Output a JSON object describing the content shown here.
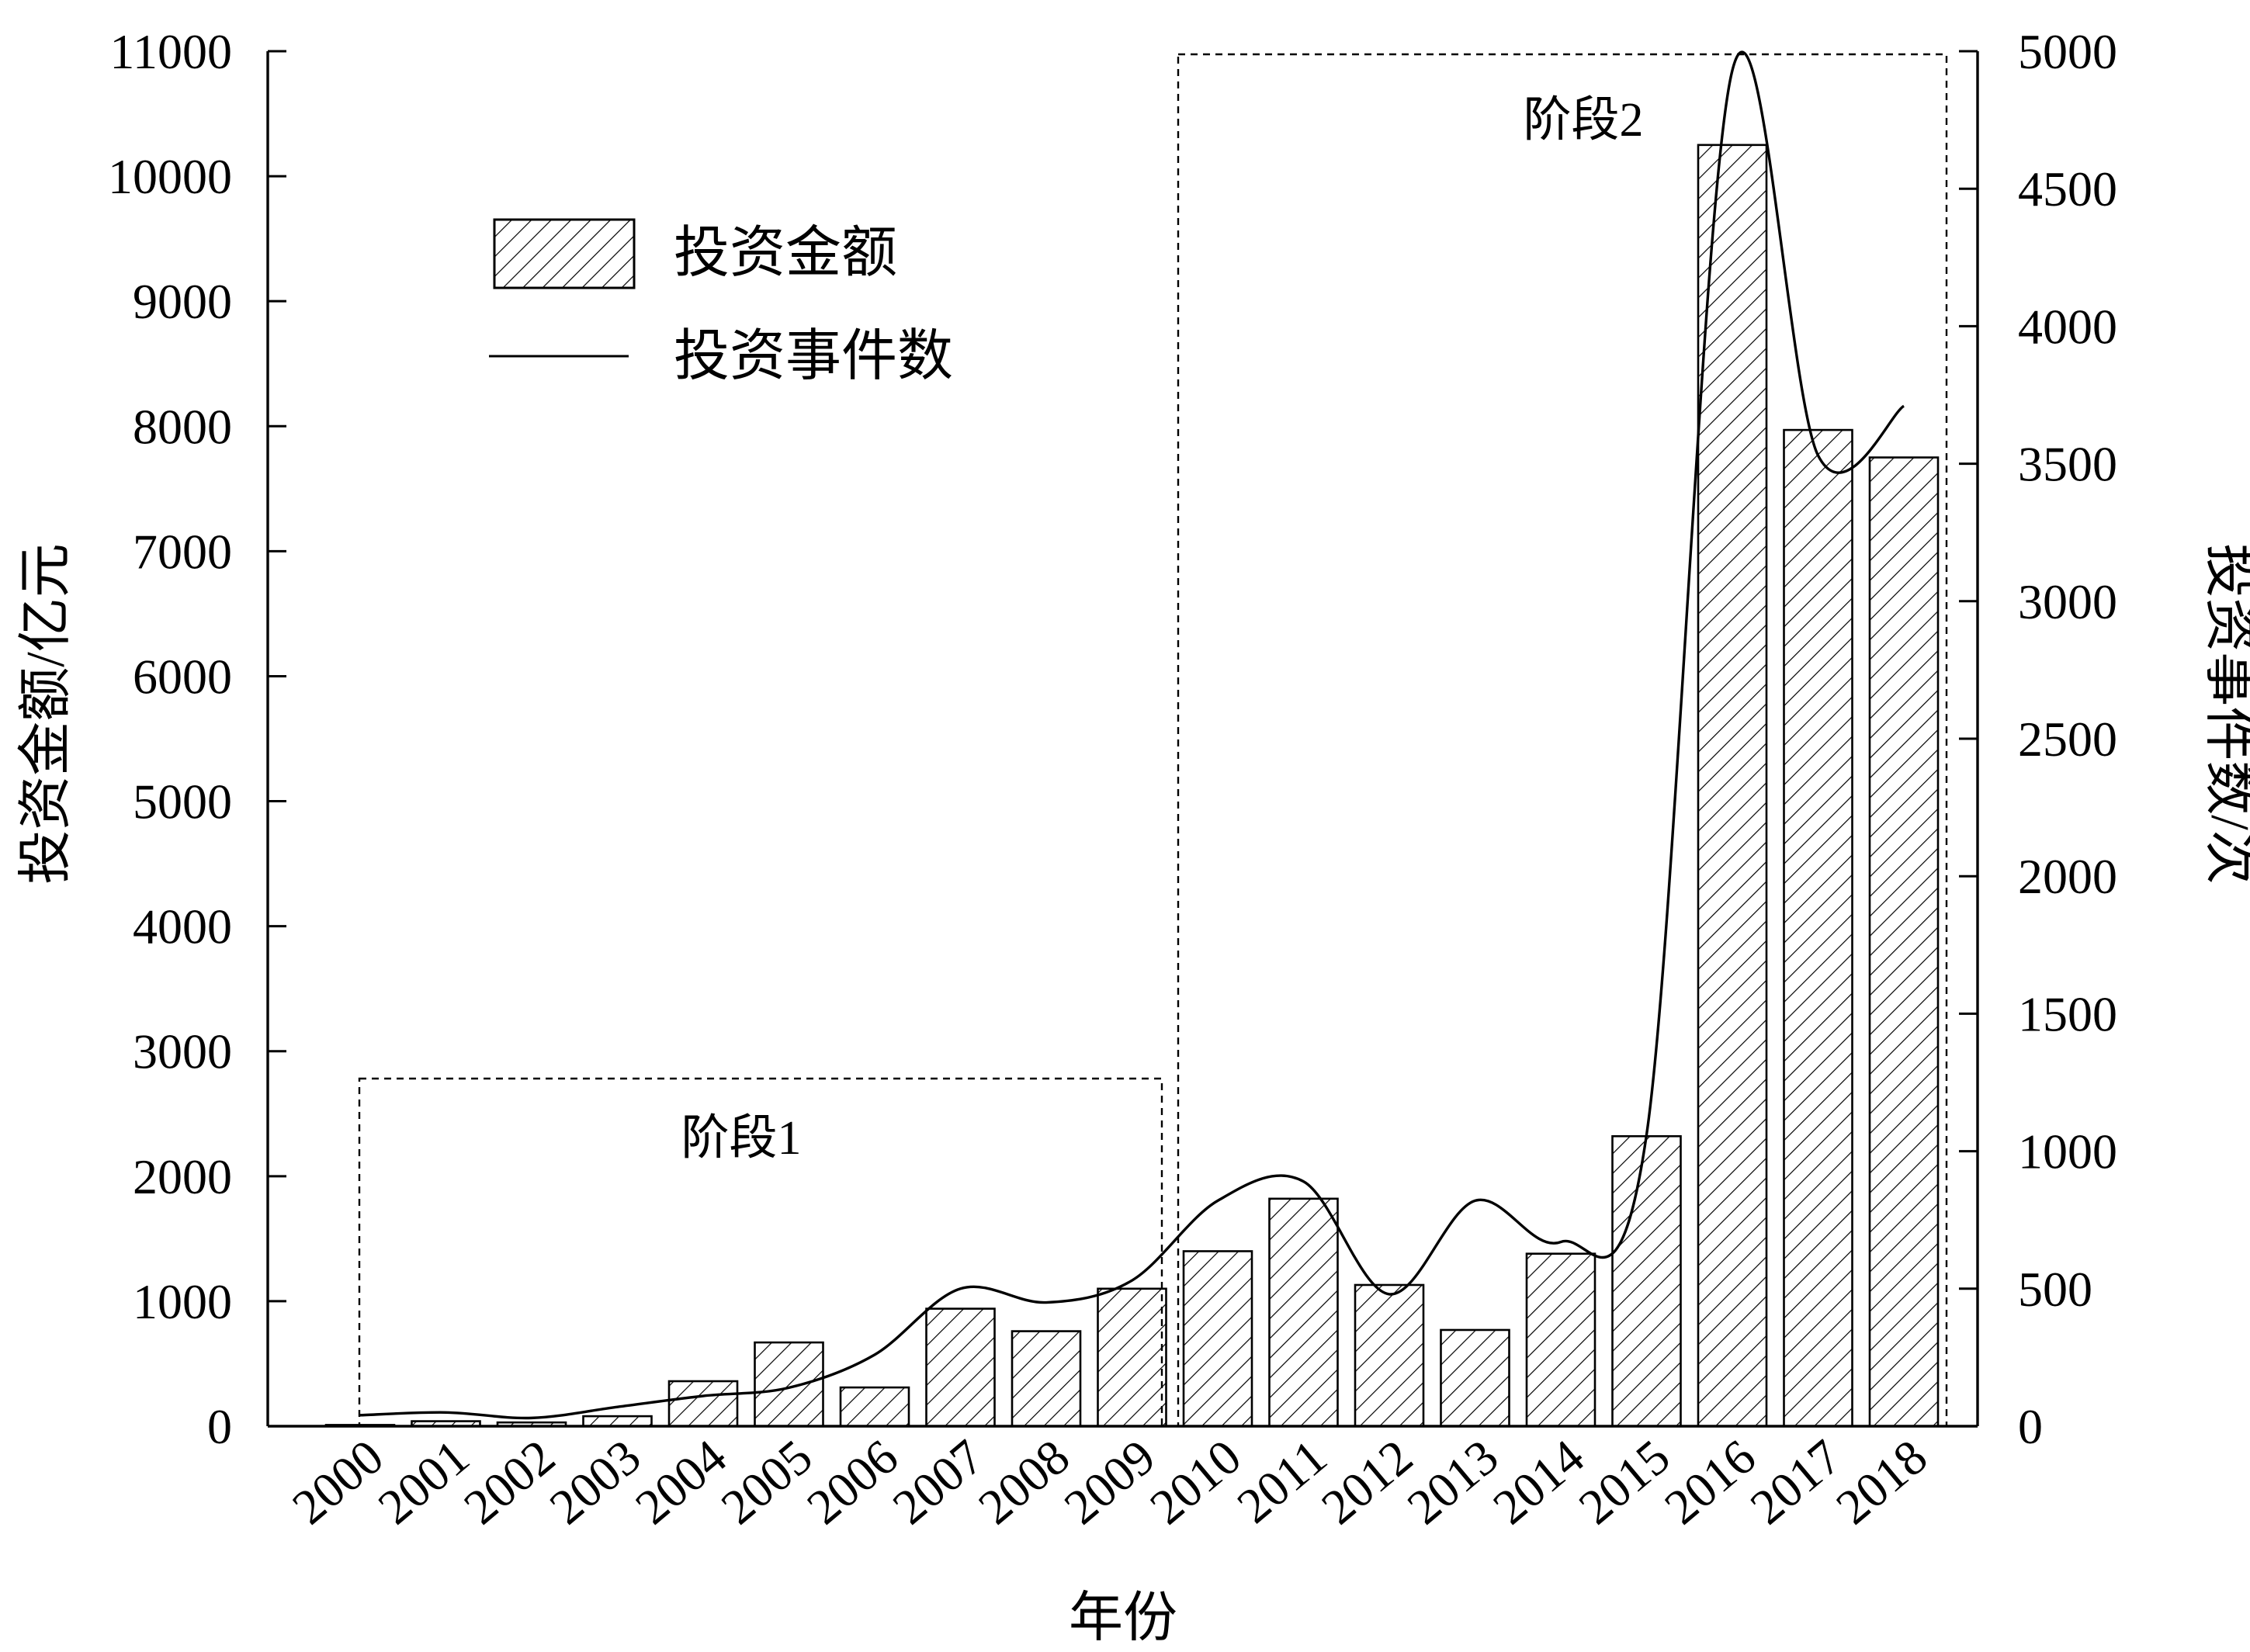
{
  "chart_data": {
    "type": "bar",
    "categories": [
      "2000",
      "2001",
      "2002",
      "2003",
      "2004",
      "2005",
      "2006",
      "2007",
      "2008",
      "2009",
      "2010",
      "2011",
      "2012",
      "2013",
      "2014",
      "2015",
      "2016",
      "2017",
      "2018"
    ],
    "series": [
      {
        "name": "投资金额",
        "type": "bar",
        "axis": "left",
        "pattern": "diagonal-hatch",
        "values": [
          10,
          40,
          30,
          80,
          360,
          670,
          310,
          940,
          760,
          1100,
          1400,
          1820,
          1130,
          770,
          1380,
          2320,
          10250,
          7970,
          7750
        ]
      },
      {
        "name": "投资事件数",
        "type": "line",
        "axis": "right",
        "smooth": true,
        "values": [
          40,
          50,
          30,
          70,
          110,
          140,
          260,
          500,
          450,
          530,
          820,
          890,
          480,
          820,
          670,
          1060,
          4930,
          3530,
          3710
        ]
      }
    ],
    "xlabel": "年份",
    "ylabel": "投资金额/亿元",
    "ylabel_right": "投资事件数/次",
    "ylim": [
      0,
      11000
    ],
    "ylim_right": [
      0,
      5000
    ],
    "yticks": [
      0,
      1000,
      2000,
      3000,
      4000,
      5000,
      6000,
      7000,
      8000,
      9000,
      10000,
      11000
    ],
    "yticks_right": [
      0,
      500,
      1000,
      1500,
      2000,
      2500,
      3000,
      3500,
      4000,
      4500,
      5000
    ],
    "grid": false,
    "legend": {
      "position": "top-left",
      "entries": [
        "投资金额",
        "投资事件数"
      ]
    },
    "annotations": [
      {
        "label": "阶段1",
        "from": "2000",
        "to": "2009",
        "style": "dashed-box"
      },
      {
        "label": "阶段2",
        "from": "2010",
        "to": "2018",
        "style": "dashed-box"
      }
    ],
    "colors": {
      "bar_fill": "#ffffff",
      "bar_edge": "#000000",
      "hatch": "#000000",
      "line": "#000000"
    }
  }
}
